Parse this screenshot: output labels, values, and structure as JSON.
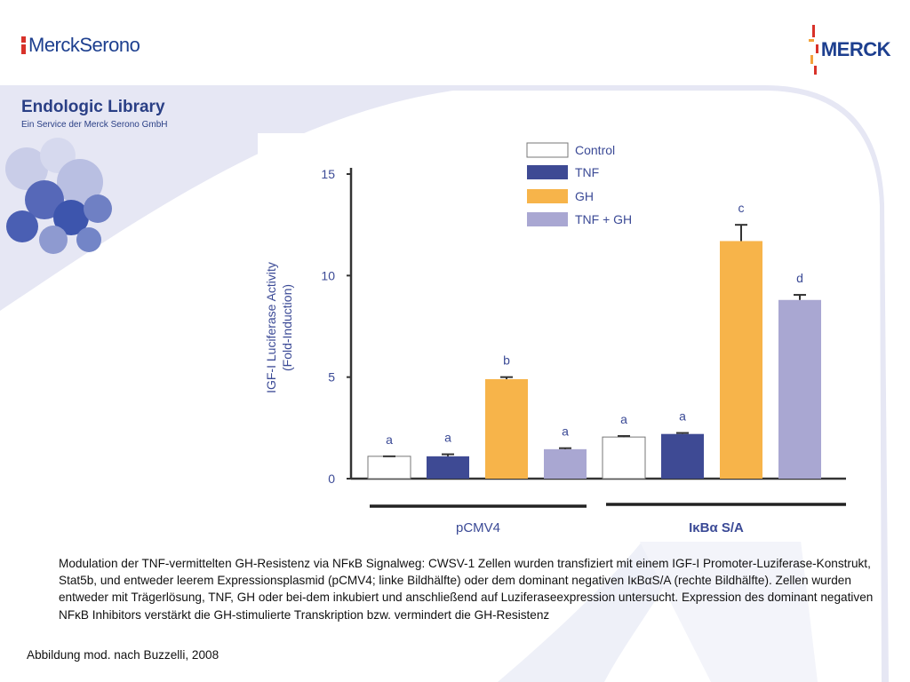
{
  "header": {
    "logo_left": "MerckSerono",
    "logo_right": "MERCK",
    "title": "Endologic Library",
    "subtitle": "Ein Service der Merck Serono GmbH"
  },
  "chart_data": {
    "type": "bar",
    "ylabel_line1": "IGF-I Luciferase Activity",
    "ylabel_line2": "(Fold-Induction)",
    "ylim": [
      0,
      15
    ],
    "yticks": [
      0,
      5,
      10,
      15
    ],
    "grid": false,
    "legend_position": "top",
    "groups": [
      "pCMV4",
      "IκBα S/A"
    ],
    "series": [
      {
        "name": "Control",
        "color": "#ffffff",
        "values": [
          1.1,
          2.05
        ],
        "errors": [
          0.0,
          0.05
        ],
        "letters": [
          "a",
          "a"
        ]
      },
      {
        "name": "TNF",
        "color": "#3e4a94",
        "values": [
          1.1,
          2.2
        ],
        "errors": [
          0.1,
          0.05
        ],
        "letters": [
          "a",
          "a"
        ]
      },
      {
        "name": "GH",
        "color": "#f7b44a",
        "values": [
          4.9,
          11.7
        ],
        "errors": [
          0.1,
          0.8
        ],
        "letters": [
          "b",
          "c"
        ]
      },
      {
        "name": "TNF + GH",
        "color": "#a9a7d2",
        "values": [
          1.45,
          8.8
        ],
        "errors": [
          0.05,
          0.25
        ],
        "letters": [
          "a",
          "d"
        ]
      }
    ]
  },
  "caption": "Modulation der TNF-vermittelten GH-Resistenz via NFκB Signalweg: CWSV-1 Zellen wurden transfiziert mit einem IGF-I Promoter-Luziferase-Konstrukt, Stat5b, und entweder leerem Expressionsplasmid (pCMV4; linke Bildhälfte) oder dem dominant negativen IκBαS/A (rechte Bildhälfte). Zellen wurden entweder mit Trägerlösung, TNF, GH oder bei-dem inkubiert und anschließend auf Luziferaseexpression untersucht. Expression des dominant negativen NFκB Inhibitors verstärkt die GH-stimulierte Transkription bzw. vermindert die GH-Resistenz",
  "source": "Abbildung mod. nach Buzzelli, 2008"
}
